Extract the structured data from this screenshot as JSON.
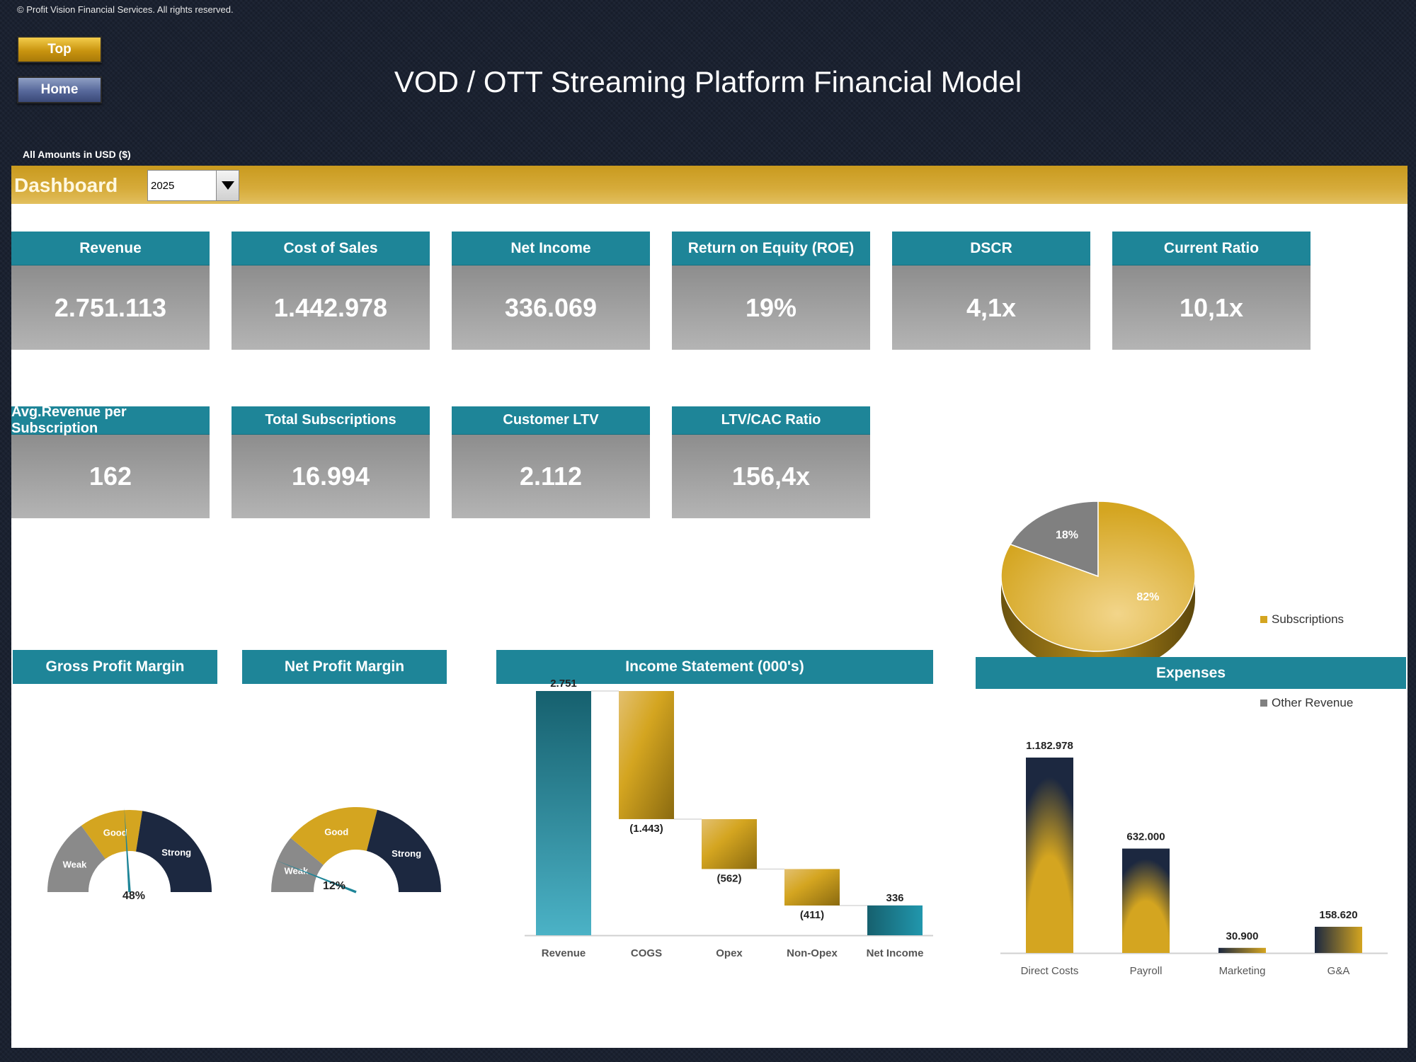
{
  "copyright": "© Profit Vision Financial Services. All rights reserved.",
  "nav": {
    "top": "Top",
    "home": "Home"
  },
  "title": "VOD / OTT Streaming Platform Financial Model",
  "amounts_note": "All Amounts in  USD ($)",
  "dashboard": {
    "label": "Dashboard",
    "year": "2025"
  },
  "kpis_row1": [
    {
      "label": "Revenue",
      "value": "2.751.113"
    },
    {
      "label": "Cost of Sales",
      "value": "1.442.978"
    },
    {
      "label": "Net Income",
      "value": "336.069"
    },
    {
      "label": "Return on Equity (ROE)",
      "value": "19%"
    },
    {
      "label": "DSCR",
      "value": "4,1x"
    },
    {
      "label": "Current Ratio",
      "value": "10,1x"
    }
  ],
  "kpis_row2": [
    {
      "label": "Avg.Revenue per Subscription",
      "value": "162"
    },
    {
      "label": "Total Subscriptions",
      "value": "16.994"
    },
    {
      "label": "Customer LTV",
      "value": "2.112"
    },
    {
      "label": "LTV/CAC Ratio",
      "value": "156,4x"
    }
  ],
  "revenue_pie": {
    "slices": [
      {
        "name": "Subscriptions",
        "label": "82%",
        "value": 82,
        "color": "#d4a520"
      },
      {
        "name": "Other Revenue",
        "label": "18%",
        "value": 18,
        "color": "#808080"
      }
    ]
  },
  "gauges": {
    "gross": {
      "title": "Gross Profit Margin",
      "value_label": "48%",
      "value": 48,
      "zones": [
        {
          "label": "Weak",
          "color": "#8a8a8a"
        },
        {
          "label": "Good",
          "color": "#d4a520"
        },
        {
          "label": "Strong",
          "color": "#1c2840"
        }
      ]
    },
    "net": {
      "title": "Net Profit Margin",
      "value_label": "12%",
      "value": 12,
      "zones": [
        {
          "label": "Weak",
          "color": "#8a8a8a"
        },
        {
          "label": "Good",
          "color": "#d4a520"
        },
        {
          "label": "Strong",
          "color": "#1c2840"
        }
      ]
    }
  },
  "chart_data": [
    {
      "type": "bar",
      "subtype": "waterfall",
      "title": "Income Statement (000's)",
      "categories": [
        "Revenue",
        "COGS",
        "Opex",
        "Non-Opex",
        "Net Income"
      ],
      "values": [
        2751,
        -1443,
        -562,
        -411,
        336
      ],
      "labels": [
        "2.751",
        "(1.443)",
        "(562)",
        "(411)",
        "336"
      ],
      "colors": {
        "total": "#1e8598",
        "decrease": "#d4a520"
      }
    },
    {
      "type": "bar",
      "title": "Expenses",
      "categories": [
        "Direct Costs",
        "Payroll",
        "Marketing",
        "G&A"
      ],
      "values": [
        1182978,
        632000,
        30900,
        158620
      ],
      "labels": [
        "1.182.978",
        "632.000",
        "30.900",
        "158.620"
      ],
      "colors": {
        "a": "#1c2840",
        "b": "#d4a520"
      }
    }
  ]
}
